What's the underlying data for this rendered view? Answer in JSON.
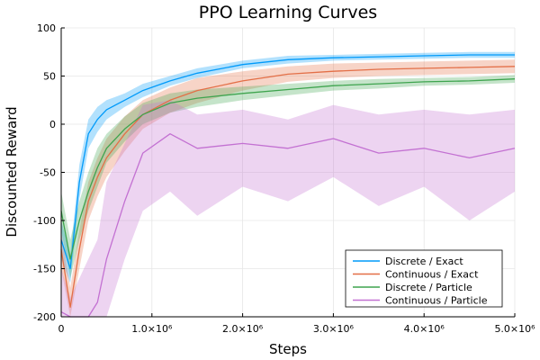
{
  "chart_data": {
    "type": "line",
    "title": "PPO Learning Curves",
    "xlabel": "Steps",
    "ylabel": "Discounted Reward",
    "xlim": [
      0,
      5000000
    ],
    "ylim": [
      -200,
      100
    ],
    "x_ticks": [
      0,
      1000000,
      2000000,
      3000000,
      4000000,
      5000000
    ],
    "x_tick_labels": [
      "0",
      "1.0×10⁶",
      "2.0×10⁶",
      "3.0×10⁶",
      "4.0×10⁶",
      "5.0×10⁶"
    ],
    "y_ticks": [
      -200,
      -150,
      -100,
      -50,
      0,
      50,
      100
    ],
    "y_tick_labels": [
      "-200",
      "-150",
      "-100",
      "-50",
      "0",
      "50",
      "100"
    ],
    "grid": true,
    "legend_position": "bottom-right",
    "x": [
      0,
      100000,
      200000,
      300000,
      400000,
      500000,
      700000,
      900000,
      1200000,
      1500000,
      2000000,
      2500000,
      3000000,
      3500000,
      4000000,
      4500000,
      5000000
    ],
    "series": [
      {
        "name": "Discrete / Exact",
        "color": "#009AFA",
        "values": [
          -120,
          -150,
          -60,
          -10,
          5,
          15,
          25,
          35,
          45,
          53,
          62,
          67,
          69,
          70,
          71,
          72,
          72
        ],
        "lower": [
          -140,
          -165,
          -78,
          -25,
          -8,
          5,
          18,
          28,
          40,
          48,
          58,
          63,
          66,
          67,
          68,
          69,
          69
        ],
        "upper": [
          -100,
          -135,
          -42,
          5,
          18,
          25,
          32,
          42,
          50,
          58,
          66,
          71,
          72,
          73,
          74,
          75,
          75
        ]
      },
      {
        "name": "Continuous / Exact",
        "color": "#E36F47",
        "values": [
          -130,
          -190,
          -130,
          -80,
          -55,
          -35,
          -10,
          10,
          25,
          35,
          45,
          52,
          55,
          57,
          58,
          59,
          60
        ],
        "lower": [
          -150,
          -200,
          -150,
          -100,
          -75,
          -55,
          -28,
          -5,
          12,
          22,
          35,
          44,
          48,
          50,
          51,
          52,
          53
        ],
        "upper": [
          -110,
          -170,
          -110,
          -60,
          -35,
          -15,
          8,
          25,
          38,
          48,
          55,
          60,
          63,
          64,
          65,
          66,
          67
        ]
      },
      {
        "name": "Discrete / Particle",
        "color": "#3EA44E",
        "values": [
          -90,
          -140,
          -100,
          -70,
          -45,
          -25,
          -5,
          10,
          22,
          27,
          32,
          36,
          40,
          42,
          44,
          45,
          47
        ],
        "lower": [
          -110,
          -160,
          -120,
          -90,
          -65,
          -40,
          -18,
          0,
          12,
          18,
          25,
          30,
          35,
          37,
          40,
          41,
          43
        ],
        "upper": [
          -70,
          -120,
          -80,
          -50,
          -25,
          -10,
          8,
          22,
          32,
          36,
          39,
          42,
          45,
          47,
          48,
          49,
          51
        ]
      },
      {
        "name": "Continuous / Particle",
        "color": "#C371D2",
        "values": [
          -195,
          -200,
          -200,
          -200,
          -185,
          -140,
          -80,
          -30,
          -10,
          -25,
          -20,
          -25,
          -15,
          -30,
          -25,
          -35,
          -25
        ],
        "lower": [
          -200,
          -200,
          -200,
          -200,
          -200,
          -200,
          -140,
          -90,
          -70,
          -95,
          -65,
          -80,
          -55,
          -85,
          -65,
          -100,
          -70
        ],
        "upper": [
          -150,
          -180,
          -160,
          -140,
          -120,
          -60,
          -20,
          20,
          25,
          10,
          15,
          5,
          20,
          10,
          15,
          10,
          15
        ]
      }
    ]
  }
}
